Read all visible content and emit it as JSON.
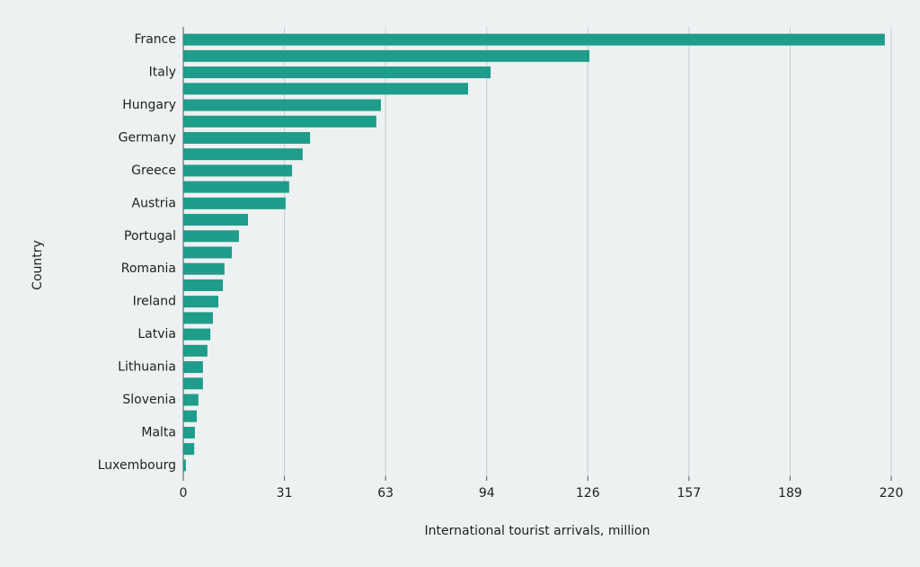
{
  "chart_data": {
    "type": "bar",
    "orientation": "horizontal",
    "x_label": "International tourist arrivals, million",
    "y_label": "Country",
    "categories": [
      "France",
      null,
      "Italy",
      null,
      "Hungary",
      null,
      "Germany",
      null,
      "Greece",
      null,
      "Austria",
      null,
      "Portugal",
      null,
      "Romania",
      null,
      "Ireland",
      null,
      "Latvia",
      null,
      "Lithuania",
      null,
      "Slovenia",
      null,
      "Malta",
      null,
      "Luxembourg"
    ],
    "values": [
      218.0,
      126.2,
      95.5,
      88.5,
      61.4,
      60.0,
      39.4,
      37.1,
      33.8,
      32.9,
      31.8,
      20.1,
      17.3,
      15.1,
      12.8,
      12.3,
      10.9,
      9.2,
      8.4,
      7.5,
      6.1,
      6.1,
      4.7,
      4.2,
      3.6,
      3.4,
      0.8
    ],
    "color": "#1f9c8a",
    "xlim": [
      0,
      220
    ],
    "xticks": [
      0,
      {
        "value": 31.43,
        "label": "31"
      },
      {
        "value": 62.86,
        "label": "63"
      },
      {
        "value": 94.29,
        "label": "94"
      },
      {
        "value": 125.71,
        "label": "126"
      },
      {
        "value": 157.14,
        "label": "157"
      },
      {
        "value": 188.57,
        "label": "189"
      },
      220
    ],
    "grid": true
  }
}
